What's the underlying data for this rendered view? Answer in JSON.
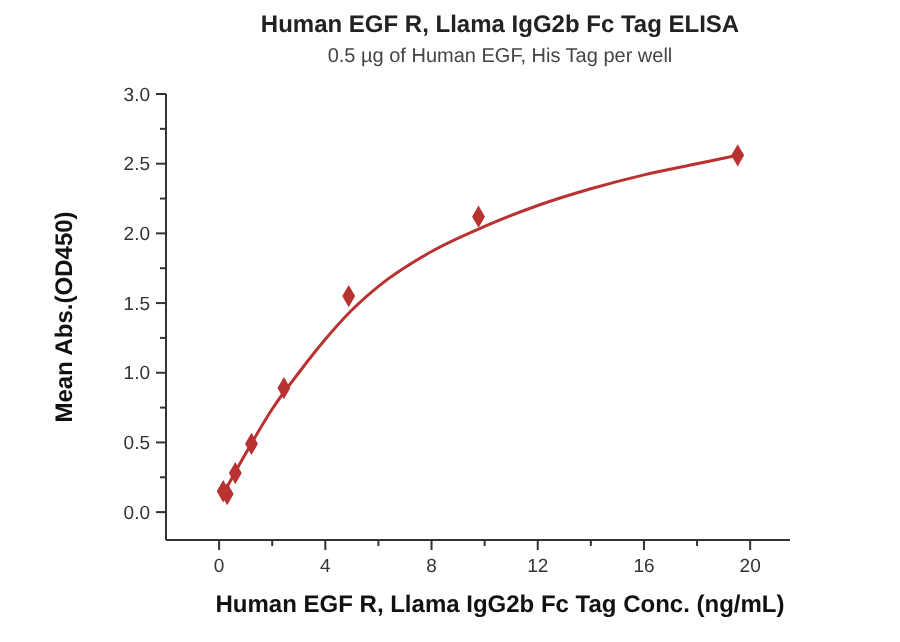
{
  "chart_data": {
    "type": "scatter",
    "title": "Human EGF R, Llama IgG2b Fc Tag ELISA",
    "subtitle": "0.5 µg of Human EGF, His Tag per well",
    "xlabel": "Human EGF R, Llama IgG2b Fc Tag Conc. (ng/mL)",
    "ylabel": "Mean Abs.(OD450)",
    "xlim": [
      -2,
      21.5
    ],
    "xticks": [
      0,
      4,
      8,
      12,
      16,
      20
    ],
    "ylim": [
      -0.2,
      3
    ],
    "yticks": [
      {
        "value": 0,
        "label": "0.0"
      },
      {
        "value": 0.5,
        "label": "0.5"
      },
      {
        "value": 1,
        "label": "1.0"
      },
      {
        "value": 1.5,
        "label": "1.5"
      },
      {
        "value": 2,
        "label": "2.0"
      },
      {
        "value": 2.5,
        "label": "2.5"
      },
      {
        "value": 3,
        "label": "3.0"
      }
    ],
    "grid": false,
    "series": [
      {
        "type": "line",
        "color": "#b83232",
        "line_style": "solid",
        "marker": "none",
        "x": [
          0.153,
          0.5,
          1,
          2,
          3,
          4,
          5,
          6,
          8,
          10,
          12,
          14,
          16,
          18,
          19.53
        ],
        "values": [
          0.13,
          0.25,
          0.42,
          0.74,
          1.0,
          1.24,
          1.45,
          1.62,
          1.87,
          2.05,
          2.2,
          2.32,
          2.42,
          2.5,
          2.56
        ]
      },
      {
        "color": "#b83232",
        "marker": "diamond",
        "x": [
          0.153,
          0.305,
          0.61,
          1.22,
          2.44,
          4.88,
          9.77,
          19.53
        ],
        "values": [
          0.15,
          0.13,
          0.28,
          0.49,
          0.89,
          1.55,
          2.12,
          2.56
        ]
      }
    ]
  }
}
